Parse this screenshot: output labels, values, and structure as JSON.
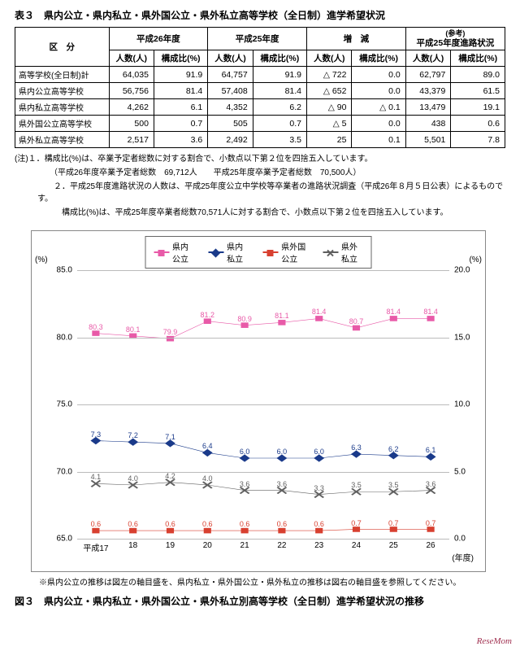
{
  "table_title": "表３　県内公立・県内私立・県外国公立・県外私立高等学校（全日制）進学希望状況",
  "table": {
    "head": {
      "kubun": "区　分",
      "h26": "平成26年度",
      "h25": "平成25年度",
      "zougen": "増　減",
      "ref_note": "(参考)",
      "ref": "平成25年度進路状況",
      "ninzu": "人数(人)",
      "kousei": "構成比(%)"
    },
    "rows": [
      {
        "label": "高等学校(全日制)計",
        "h26n": "64,035",
        "h26p": "91.9",
        "h25n": "64,757",
        "h25p": "91.9",
        "zn": "△ 722",
        "zp": "0.0",
        "rn": "62,797",
        "rp": "89.0"
      },
      {
        "label": "県内公立高等学校",
        "h26n": "56,756",
        "h26p": "81.4",
        "h25n": "57,408",
        "h25p": "81.4",
        "zn": "△ 652",
        "zp": "0.0",
        "rn": "43,379",
        "rp": "61.5"
      },
      {
        "label": "県内私立高等学校",
        "h26n": "4,262",
        "h26p": "6.1",
        "h25n": "4,352",
        "h25p": "6.2",
        "zn": "△ 90",
        "zp": "△ 0.1",
        "rn": "13,479",
        "rp": "19.1"
      },
      {
        "label": "県外国公立高等学校",
        "h26n": "500",
        "h26p": "0.7",
        "h25n": "505",
        "h25p": "0.7",
        "zn": "△ 5",
        "zp": "0.0",
        "rn": "438",
        "rp": "0.6"
      },
      {
        "label": "県外私立高等学校",
        "h26n": "2,517",
        "h26p": "3.6",
        "h25n": "2,492",
        "h25p": "3.5",
        "zn": "25",
        "zp": "0.1",
        "rn": "5,501",
        "rp": "7.8"
      }
    ]
  },
  "notes": {
    "n1": "(注)１．構成比(%)は、卒業予定者総数に対する割合で、小数点以下第２位を四捨五入しています。",
    "n1b": "　　（平成26年度卒業予定者総数　69,712人　　平成25年度卒業予定者総数　70,500人）",
    "n2": "　　２．平成25年度進路状況の人数は、平成25年度公立中学校等卒業者の進路状況調査（平成26年８月５日公表）によるものです。",
    "n2b": "　　　構成比(%)は、平成25年度卒業者総数70,571人に対する割合で、小数点以下第２位を四捨五入しています。"
  },
  "chart": {
    "legend": [
      {
        "label": "県内公立",
        "color": "#e85aa8",
        "marker": "sq"
      },
      {
        "label": "県内私立",
        "color": "#1a3a8a",
        "marker": "dia"
      },
      {
        "label": "県外国公立",
        "color": "#d84030",
        "marker": "sq"
      },
      {
        "label": "県外私立",
        "color": "#606060",
        "marker": "cross"
      }
    ],
    "pct": "(%)",
    "left_axis": {
      "min": 65,
      "max": 85,
      "step": 5,
      "labels": [
        "65.0",
        "70.0",
        "75.0",
        "80.0",
        "85.0"
      ]
    },
    "right_axis": {
      "min": 0,
      "max": 20,
      "step": 5,
      "labels": [
        "0.0",
        "5.0",
        "10.0",
        "15.0",
        "20.0"
      ]
    },
    "x_labels": [
      "平成17",
      "18",
      "19",
      "20",
      "21",
      "22",
      "23",
      "24",
      "25",
      "26"
    ],
    "nendo": "(年度)",
    "series": [
      {
        "axis": "left",
        "color": "#e85aa8",
        "marker": "sq",
        "values": [
          80.3,
          80.1,
          79.9,
          81.2,
          80.9,
          81.1,
          81.4,
          80.7,
          81.4,
          81.4
        ]
      },
      {
        "axis": "right",
        "color": "#1a3a8a",
        "marker": "dia",
        "values": [
          7.3,
          7.2,
          7.1,
          6.4,
          6.0,
          6.0,
          6.0,
          6.3,
          6.2,
          6.1
        ]
      },
      {
        "axis": "right",
        "color": "#606060",
        "marker": "cross",
        "values": [
          4.1,
          4.0,
          4.2,
          4.0,
          3.6,
          3.6,
          3.3,
          3.5,
          3.5,
          3.6
        ]
      },
      {
        "axis": "right",
        "color": "#d84030",
        "marker": "sq",
        "values": [
          0.6,
          0.6,
          0.6,
          0.6,
          0.6,
          0.6,
          0.6,
          0.7,
          0.7,
          0.7
        ]
      }
    ],
    "grid_color": "#bbbbbb"
  },
  "footnote": "※県内公立の推移は図左の軸目盛を、県内私立・県外国公立・県外私立の推移は図右の軸目盛を参照してください。",
  "fig_title": "図３　県内公立・県内私立・県外国公立・県外私立別高等学校（全日制）進学希望状況の推移",
  "watermark": "ReseMom"
}
